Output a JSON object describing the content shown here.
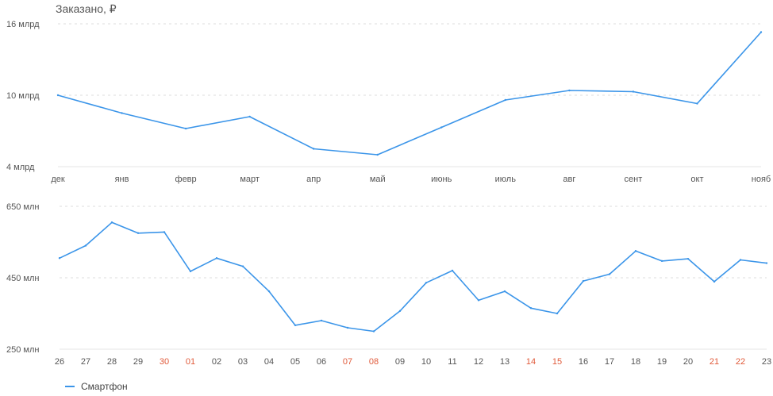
{
  "header": {
    "title": "Заказано, ₽"
  },
  "legend": {
    "label": "Смартфон"
  },
  "colors": {
    "line": "#3b95e9",
    "grid": "#dddddd",
    "tick": "#555555",
    "weekend": "#e05a3a"
  },
  "chart_data": [
    {
      "type": "line",
      "title": "Заказано, ₽",
      "categories": [
        "дек",
        "янв",
        "февр",
        "март",
        "апр",
        "май",
        "июнь",
        "июль",
        "авг",
        "сент",
        "окт",
        "нояб"
      ],
      "series": [
        {
          "values": [
            10.0,
            8.5,
            7.2,
            8.2,
            5.5,
            5.0,
            7.3,
            9.6,
            10.4,
            10.3,
            9.3,
            15.3
          ]
        }
      ],
      "y_ticks": [
        {
          "value": 4,
          "label": "4 млрд"
        },
        {
          "value": 10,
          "label": "10 млрд"
        },
        {
          "value": 16,
          "label": "16 млрд"
        }
      ],
      "ylim": [
        4,
        16
      ],
      "grid": true
    },
    {
      "type": "line",
      "categories": [
        "26",
        "27",
        "28",
        "29",
        "30",
        "01",
        "02",
        "03",
        "04",
        "05",
        "06",
        "07",
        "08",
        "09",
        "10",
        "11",
        "12",
        "13",
        "14",
        "15",
        "16",
        "17",
        "18",
        "19",
        "20",
        "21",
        "22",
        "23"
      ],
      "highlighted_categories": [
        "30",
        "01",
        "07",
        "08",
        "14",
        "15",
        "21",
        "22"
      ],
      "series": [
        {
          "name": "Смартфон",
          "values": [
            505,
            540,
            605,
            575,
            578,
            468,
            505,
            482,
            412,
            317,
            330,
            310,
            300,
            357,
            436,
            470,
            387,
            412,
            365,
            350,
            441,
            460,
            525,
            497,
            503,
            439,
            500,
            491
          ]
        }
      ],
      "y_ticks": [
        {
          "value": 250,
          "label": "250 млн"
        },
        {
          "value": 450,
          "label": "450 млн"
        },
        {
          "value": 650,
          "label": "650 млн"
        }
      ],
      "ylim": [
        250,
        650
      ],
      "grid": true,
      "legend": "bottom-left"
    }
  ]
}
